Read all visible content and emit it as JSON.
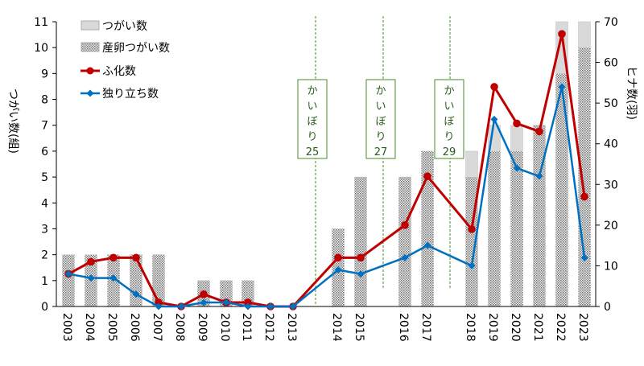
{
  "chart_data": {
    "type": "bar+line",
    "categories": [
      "2003",
      "2004",
      "2005",
      "2006",
      "2007",
      "2008",
      "2009",
      "2010",
      "2011",
      "2012",
      "2013",
      "2014",
      "2015",
      "2016",
      "2017",
      "2018",
      "2019",
      "2020",
      "2021",
      "2022",
      "2023"
    ],
    "y_left": {
      "label": "つがい数(組)",
      "min": 0,
      "max": 11,
      "ticks": [
        0,
        1,
        2,
        3,
        4,
        5,
        6,
        7,
        8,
        9,
        10,
        11
      ]
    },
    "y_right": {
      "label": "ヒナ数(羽)",
      "min": 0,
      "max": 70,
      "ticks": [
        0,
        10,
        20,
        30,
        40,
        50,
        60,
        70
      ]
    },
    "series": [
      {
        "name": "つがい数",
        "kind": "bar",
        "axis": "left",
        "color": "#d9d9d9",
        "values": [
          2,
          2,
          2,
          2,
          2,
          0,
          1,
          1,
          1,
          0,
          0,
          3,
          5,
          5,
          6,
          6,
          7,
          7,
          7,
          11,
          11
        ]
      },
      {
        "name": "産卵つがい数",
        "kind": "bar",
        "axis": "left",
        "color": "#7f7f7f",
        "pattern": "dotted",
        "values": [
          2,
          2,
          2,
          2,
          2,
          0,
          1,
          1,
          1,
          0,
          0,
          3,
          5,
          5,
          6,
          5,
          6,
          6,
          7,
          9,
          10
        ]
      },
      {
        "name": "ふ化数",
        "kind": "line",
        "axis": "right",
        "color": "#c00000",
        "marker": "circle",
        "values": [
          8,
          11,
          12,
          12,
          1,
          0,
          3,
          1,
          1,
          0,
          0,
          12,
          12,
          20,
          32,
          19,
          54,
          45,
          43,
          67,
          27
        ]
      },
      {
        "name": "独り立ち数",
        "kind": "line",
        "axis": "right",
        "color": "#0070c0",
        "marker": "diamond",
        "values": [
          8,
          7,
          7,
          3,
          0,
          0,
          1,
          1,
          0,
          0,
          0,
          9,
          8,
          12,
          15,
          10,
          46,
          34,
          32,
          54,
          12
        ]
      }
    ],
    "annotations": [
      {
        "text": "かいぼり25",
        "between": [
          "2013",
          "2014"
        ]
      },
      {
        "text": "かいぼり27",
        "between": [
          "2015",
          "2016"
        ]
      },
      {
        "text": "かいぼり29",
        "between": [
          "2017",
          "2018"
        ]
      }
    ],
    "legend_position": "top-left",
    "grid": false
  }
}
